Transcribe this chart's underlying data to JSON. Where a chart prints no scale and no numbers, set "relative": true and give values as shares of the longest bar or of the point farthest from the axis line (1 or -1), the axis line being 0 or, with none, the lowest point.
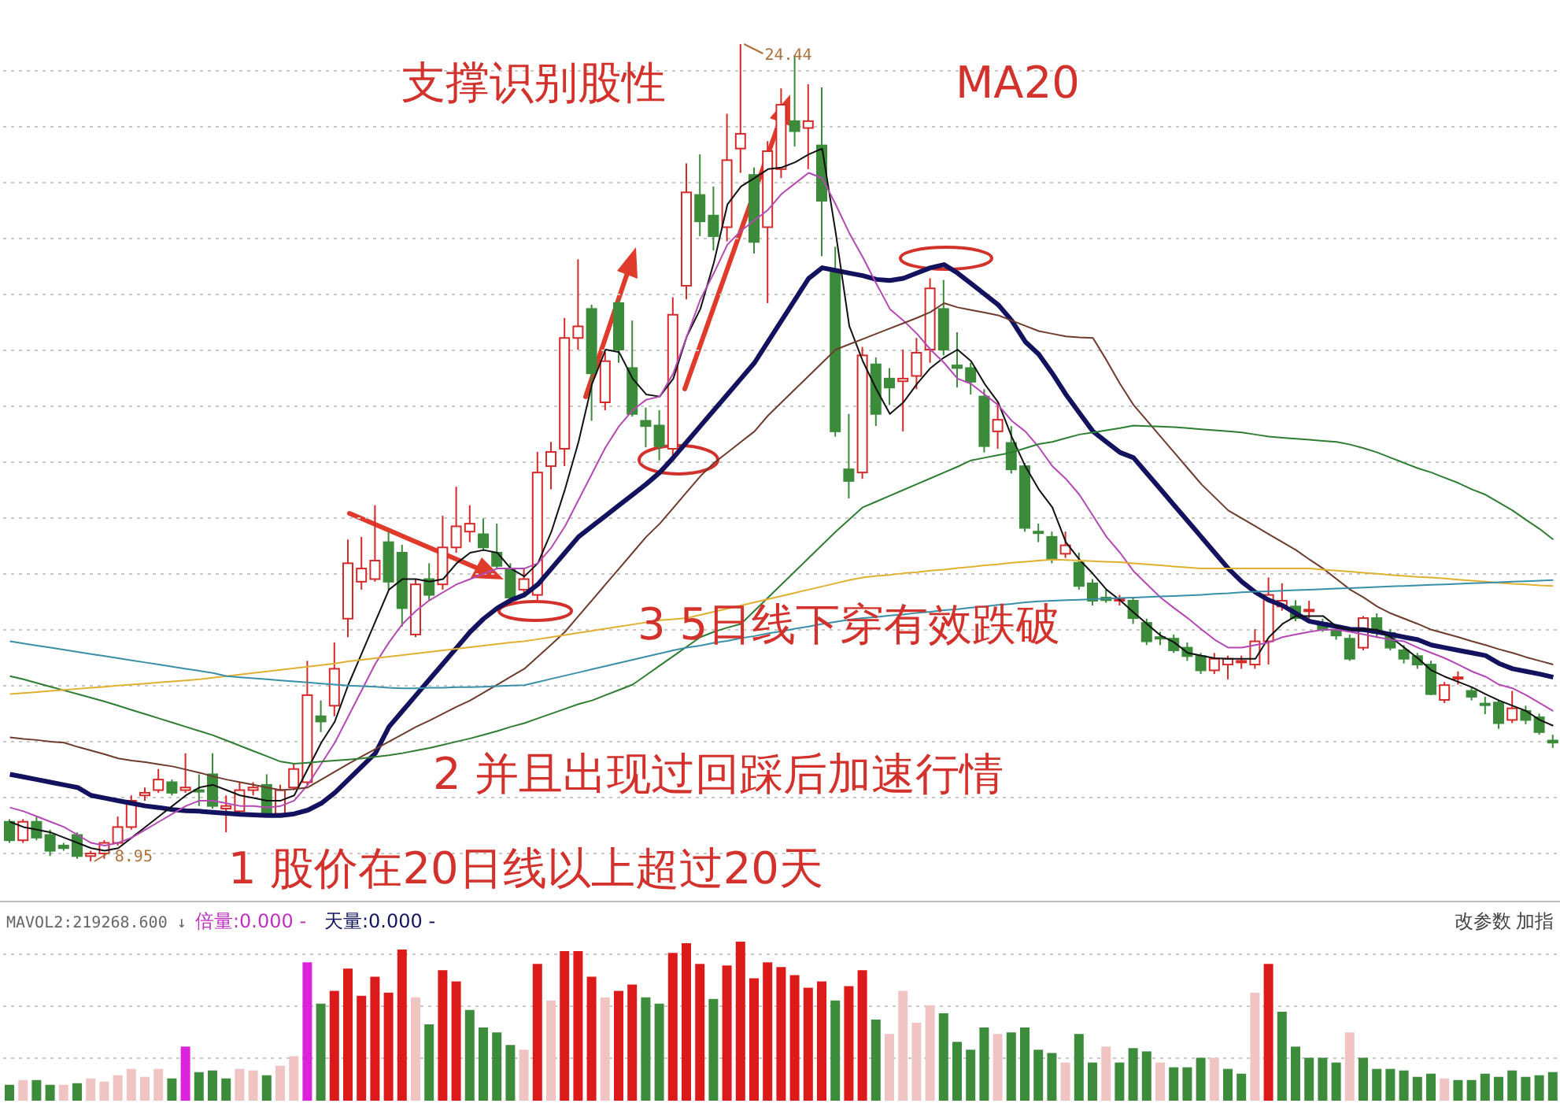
{
  "chart_data": [
    {
      "type": "candlestick",
      "grid": true,
      "annotations": [
        "支撑识别股性",
        "MA20",
        "3 5日线下穿有效跌破",
        "2 并且出现过回踩后加速行情",
        "1 股价在20日线以上超过20天",
        "24.44",
        "8.95"
      ],
      "categories": [
        null,
        null,
        null,
        null,
        null,
        null,
        null,
        null,
        null,
        null,
        null,
        null,
        null,
        null,
        null,
        null,
        null,
        null,
        null,
        null,
        null,
        null,
        null,
        null,
        null,
        null,
        null,
        null,
        null,
        null,
        null,
        null,
        null,
        null,
        null,
        null,
        null,
        null,
        null,
        null,
        null,
        null,
        null,
        null,
        null,
        null,
        null,
        null,
        null,
        null,
        null,
        null,
        null,
        null,
        null,
        null,
        null,
        null,
        null,
        null,
        null,
        null,
        null,
        null,
        null,
        null,
        null,
        null,
        null,
        null,
        null,
        null,
        null,
        null,
        null,
        null,
        null,
        null,
        null,
        null,
        null,
        null,
        null,
        null,
        null,
        null,
        null,
        null,
        null,
        null,
        null,
        null,
        null,
        null,
        null,
        null,
        null,
        null,
        null,
        null,
        null,
        null,
        null,
        null,
        null,
        null,
        null,
        null,
        null,
        null,
        null,
        null,
        null,
        null,
        null
      ],
      "ohlc": [
        [
          9.7,
          9.75,
          9.3,
          9.35
        ],
        [
          9.35,
          9.75,
          9.3,
          9.7
        ],
        [
          9.7,
          9.8,
          9.35,
          9.4
        ],
        [
          9.45,
          9.55,
          9.05,
          9.15
        ],
        [
          9.25,
          9.3,
          9.15,
          9.2
        ],
        [
          9.45,
          9.5,
          9.0,
          9.05
        ],
        [
          9.05,
          9.15,
          8.95,
          9.1
        ],
        [
          9.1,
          9.35,
          9.0,
          9.3
        ],
        [
          9.3,
          9.8,
          9.25,
          9.6
        ],
        [
          9.6,
          10.2,
          9.55,
          10.1
        ],
        [
          10.2,
          10.35,
          10.1,
          10.25
        ],
        [
          10.3,
          10.7,
          10.25,
          10.5
        ],
        [
          10.45,
          10.5,
          10.2,
          10.25
        ],
        [
          10.3,
          11.0,
          10.25,
          10.35
        ],
        [
          10.3,
          10.6,
          10.0,
          10.28
        ],
        [
          10.6,
          11.0,
          9.95,
          10.0
        ],
        [
          9.95,
          10.2,
          9.5,
          10.0
        ],
        [
          9.9,
          10.45,
          9.85,
          10.3
        ],
        [
          10.3,
          10.45,
          10.2,
          10.35
        ],
        [
          10.4,
          10.6,
          9.8,
          9.85
        ],
        [
          9.85,
          10.4,
          9.8,
          10.3
        ],
        [
          10.35,
          10.8,
          10.3,
          10.7
        ],
        [
          10.45,
          12.75,
          10.4,
          12.1
        ],
        [
          11.7,
          12.0,
          11.4,
          11.6
        ],
        [
          11.9,
          13.1,
          11.7,
          12.6
        ],
        [
          13.55,
          15.05,
          13.2,
          14.6
        ],
        [
          14.25,
          15.1,
          14.1,
          14.5
        ],
        [
          14.3,
          15.7,
          14.25,
          14.65
        ],
        [
          15.0,
          15.2,
          14.1,
          14.25
        ],
        [
          14.8,
          14.95,
          13.4,
          13.75
        ],
        [
          13.25,
          14.3,
          13.2,
          14.2
        ],
        [
          14.3,
          14.6,
          13.9,
          14.0
        ],
        [
          14.2,
          15.5,
          14.1,
          14.9
        ],
        [
          14.9,
          16.05,
          14.8,
          15.3
        ],
        [
          15.2,
          15.7,
          15.0,
          15.35
        ],
        [
          15.15,
          15.45,
          14.85,
          14.9
        ],
        [
          14.8,
          15.35,
          14.5,
          14.55
        ],
        [
          14.5,
          14.6,
          13.9,
          13.95
        ],
        [
          14.1,
          14.5,
          13.95,
          14.3
        ],
        [
          14.0,
          16.71,
          13.9,
          16.32
        ],
        [
          16.44,
          16.9,
          16.0,
          16.71
        ],
        [
          16.77,
          19.25,
          16.44,
          18.87
        ],
        [
          18.87,
          20.36,
          18.65,
          19.09
        ],
        [
          19.42,
          19.5,
          17.3,
          18.2
        ],
        [
          17.65,
          18.6,
          17.5,
          18.43
        ],
        [
          19.53,
          19.6,
          18.4,
          18.65
        ],
        [
          18.3,
          19.2,
          17.38,
          17.43
        ],
        [
          17.3,
          17.55,
          16.8,
          17.2
        ],
        [
          17.21,
          17.5,
          16.55,
          16.82
        ],
        [
          16.77,
          19.64,
          16.6,
          19.31
        ],
        [
          19.86,
          22.18,
          19.6,
          21.63
        ],
        [
          21.58,
          22.35,
          20.8,
          21.08
        ],
        [
          21.19,
          21.74,
          20.53,
          20.8
        ],
        [
          20.97,
          23.12,
          20.7,
          22.24
        ],
        [
          22.46,
          24.44,
          22.0,
          22.74
        ],
        [
          21.96,
          22.1,
          20.47,
          20.69
        ],
        [
          20.97,
          22.6,
          19.53,
          22.41
        ],
        [
          22.07,
          23.6,
          21.9,
          23.29
        ],
        [
          22.98,
          24.23,
          22.5,
          22.79
        ],
        [
          22.85,
          23.68,
          22.07,
          22.98
        ],
        [
          22.52,
          23.62,
          20.42,
          21.47
        ],
        [
          20.14,
          20.6,
          17.0,
          17.1
        ],
        [
          16.38,
          17.43,
          15.83,
          16.16
        ],
        [
          16.32,
          18.7,
          16.2,
          18.54
        ],
        [
          18.37,
          18.5,
          17.2,
          17.43
        ],
        [
          18.1,
          18.3,
          17.6,
          17.93
        ],
        [
          18.05,
          18.65,
          17.1,
          18.1
        ],
        [
          18.15,
          18.87,
          17.9,
          18.59
        ],
        [
          18.65,
          20.0,
          18.4,
          19.81
        ],
        [
          19.42,
          19.97,
          18.54,
          18.65
        ],
        [
          18.35,
          18.98,
          17.93,
          18.3
        ],
        [
          18.3,
          18.4,
          17.8,
          18.04
        ],
        [
          17.76,
          17.9,
          16.7,
          16.82
        ],
        [
          17.1,
          17.65,
          16.77,
          17.32
        ],
        [
          16.88,
          17.2,
          16.3,
          16.38
        ],
        [
          16.44,
          16.5,
          15.2,
          15.27
        ],
        [
          15.2,
          15.35,
          15.0,
          15.17
        ],
        [
          15.1,
          15.2,
          14.6,
          14.67
        ],
        [
          14.78,
          15.2,
          14.7,
          14.94
        ],
        [
          14.61,
          14.8,
          14.1,
          14.17
        ],
        [
          14.22,
          14.3,
          13.8,
          13.89
        ],
        [
          13.95,
          14.1,
          13.85,
          13.9
        ],
        [
          13.9,
          14.0,
          13.8,
          13.92
        ],
        [
          13.89,
          13.95,
          13.45,
          13.56
        ],
        [
          13.47,
          13.55,
          13.05,
          13.12
        ],
        [
          13.2,
          13.3,
          13.05,
          13.17
        ],
        [
          13.17,
          13.25,
          12.9,
          12.95
        ],
        [
          13.0,
          13.1,
          12.75,
          12.84
        ],
        [
          12.84,
          12.9,
          12.5,
          12.57
        ],
        [
          12.57,
          12.9,
          12.5,
          12.79
        ],
        [
          12.68,
          12.85,
          12.4,
          12.79
        ],
        [
          12.72,
          12.85,
          12.6,
          12.75
        ],
        [
          12.68,
          13.35,
          12.6,
          13.12
        ],
        [
          13.12,
          14.33,
          12.68,
          14.0
        ],
        [
          13.78,
          14.22,
          13.7,
          13.89
        ],
        [
          13.78,
          13.9,
          13.5,
          13.56
        ],
        [
          13.7,
          13.89,
          13.56,
          13.72
        ],
        [
          13.47,
          13.55,
          13.3,
          13.34
        ],
        [
          13.34,
          13.4,
          13.15,
          13.23
        ],
        [
          13.17,
          13.25,
          12.75,
          12.79
        ],
        [
          13.0,
          13.6,
          12.95,
          13.56
        ],
        [
          13.56,
          13.65,
          13.2,
          13.28
        ],
        [
          13.28,
          13.35,
          12.95,
          13.0
        ],
        [
          12.95,
          13.05,
          12.7,
          12.79
        ],
        [
          12.84,
          12.9,
          12.6,
          12.68
        ],
        [
          12.68,
          12.75,
          12.1,
          12.12
        ],
        [
          12.01,
          12.35,
          11.95,
          12.29
        ],
        [
          12.42,
          12.55,
          12.3,
          12.44
        ],
        [
          12.18,
          12.25,
          12.0,
          12.07
        ],
        [
          11.94,
          12.07,
          11.74,
          11.92
        ],
        [
          11.96,
          12.0,
          11.46,
          11.57
        ],
        [
          11.63,
          12.18,
          11.57,
          11.85
        ],
        [
          11.8,
          11.9,
          11.55,
          11.63
        ],
        [
          11.68,
          11.75,
          11.35,
          11.4
        ],
        [
          11.24,
          11.35,
          11.1,
          11.2
        ]
      ],
      "colors": [
        "#3b8b3b",
        "#d42a2a",
        "#3b8b3b",
        "#3b8b3b",
        "#3b8b3b",
        "#3b8b3b",
        "#d42a2a",
        "#d42a2a",
        "#d42a2a",
        "#d42a2a",
        "#d42a2a",
        "#d42a2a",
        "#3b8b3b",
        "#d42a2a",
        "#3b8b3b",
        "#3b8b3b",
        "#d42a2a",
        "#d42a2a",
        "#d42a2a",
        "#3b8b3b",
        "#d42a2a",
        "#d42a2a",
        "#d42a2a",
        "#3b8b3b",
        "#d42a2a",
        "#d42a2a",
        "#d42a2a",
        "#d42a2a",
        "#3b8b3b",
        "#3b8b3b",
        "#d42a2a",
        "#3b8b3b",
        "#d42a2a",
        "#d42a2a",
        "#d42a2a",
        "#3b8b3b",
        "#3b8b3b",
        "#3b8b3b",
        "#d42a2a",
        "#d42a2a",
        "#d42a2a",
        "#d42a2a",
        "#d42a2a",
        "#3b8b3b",
        "#d42a2a",
        "#3b8b3b",
        "#3b8b3b",
        "#3b8b3b",
        "#3b8b3b",
        "#d42a2a",
        "#d42a2a",
        "#3b8b3b",
        "#3b8b3b",
        "#d42a2a",
        "#d42a2a",
        "#3b8b3b",
        "#d42a2a",
        "#d42a2a",
        "#3b8b3b",
        "#d42a2a",
        "#3b8b3b",
        "#3b8b3b",
        "#3b8b3b",
        "#d42a2a",
        "#3b8b3b",
        "#3b8b3b",
        "#d42a2a",
        "#d42a2a",
        "#d42a2a",
        "#3b8b3b",
        "#3b8b3b",
        "#3b8b3b",
        "#3b8b3b",
        "#d42a2a",
        "#3b8b3b",
        "#3b8b3b",
        "#3b8b3b",
        "#3b8b3b",
        "#d42a2a",
        "#3b8b3b",
        "#3b8b3b",
        "#3b8b3b",
        "#d42a2a",
        "#3b8b3b",
        "#3b8b3b",
        "#3b8b3b",
        "#3b8b3b",
        "#3b8b3b",
        "#3b8b3b",
        "#d42a2a",
        "#d42a2a",
        "#d42a2a",
        "#d42a2a",
        "#d42a2a",
        "#d42a2a",
        "#3b8b3b",
        "#d42a2a",
        "#3b8b3b",
        "#3b8b3b",
        "#3b8b3b",
        "#d42a2a",
        "#3b8b3b",
        "#3b8b3b",
        "#3b8b3b",
        "#3b8b3b",
        "#3b8b3b",
        "#d42a2a",
        "#d42a2a",
        "#3b8b3b",
        "#3b8b3b",
        "#3b8b3b",
        "#d42a2a",
        "#3b8b3b",
        "#3b8b3b",
        "#3b8b3b"
      ],
      "series": [
        {
          "type": "line",
          "color": "#12125e",
          "values": [
            10.6,
            10.55,
            10.5,
            10.45,
            10.4,
            10.35,
            10.2,
            10.15,
            10.1,
            10.05,
            10.0,
            9.97,
            9.93,
            9.91,
            9.9,
            9.88,
            9.86,
            9.84,
            9.83,
            9.82,
            9.82,
            9.85,
            9.92,
            10.05,
            10.25,
            10.5,
            10.75,
            11.0,
            11.5,
            11.8,
            12.1,
            12.4,
            12.7,
            13.0,
            13.3,
            13.55,
            13.75,
            13.9,
            14.0,
            14.2,
            14.5,
            14.8,
            15.1,
            15.3,
            15.5,
            15.7,
            15.9,
            16.1,
            16.32,
            16.6,
            16.9,
            17.2,
            17.5,
            17.8,
            18.1,
            18.4,
            18.8,
            19.2,
            19.6,
            20.0,
            20.2,
            20.15,
            20.1,
            20.05,
            19.98,
            19.96,
            20.0,
            20.1,
            20.2,
            20.26,
            20.1,
            19.9,
            19.7,
            19.5,
            19.2,
            18.8,
            18.56,
            18.2,
            17.8,
            17.45,
            17.1,
            16.9,
            16.7,
            16.6,
            16.3,
            16.0,
            15.7,
            15.4,
            15.1,
            14.8,
            14.5,
            14.25,
            14.05,
            13.9,
            13.8,
            13.65,
            13.5,
            13.45,
            13.4,
            13.35,
            13.34,
            13.3,
            13.25,
            13.2,
            13.15,
            13.05,
            13.0,
            12.95,
            12.9,
            12.85,
            12.7,
            12.6,
            12.55,
            12.5,
            12.44
          ]
        },
        {
          "type": "line",
          "color": "#111111",
          "values": [
            9.7,
            9.6,
            9.55,
            9.5,
            9.4,
            9.3,
            9.2,
            9.15,
            9.2,
            9.4,
            9.6,
            9.8,
            10.0,
            10.2,
            10.35,
            10.4,
            10.3,
            10.2,
            10.15,
            10.1,
            10.1,
            10.2,
            10.7,
            11.2,
            11.6,
            12.3,
            12.9,
            13.5,
            14.1,
            14.3,
            14.3,
            14.25,
            14.3,
            14.6,
            14.8,
            14.85,
            14.8,
            14.5,
            14.35,
            14.6,
            15.2,
            16.0,
            16.9,
            18.0,
            18.65,
            18.6,
            18.1,
            17.8,
            17.76,
            18.1,
            18.9,
            19.42,
            20.3,
            21.4,
            21.74,
            21.9,
            22.07,
            22.1,
            22.2,
            22.35,
            22.46,
            20.86,
            19.1,
            18.43,
            17.9,
            17.43,
            17.65,
            18.0,
            18.3,
            18.5,
            18.65,
            18.43,
            18.0,
            17.65,
            17.0,
            16.44,
            16.0,
            15.66,
            15.0,
            14.67,
            14.4,
            14.1,
            13.9,
            13.67,
            13.45,
            13.23,
            13.1,
            12.9,
            12.85,
            12.8,
            12.79,
            12.79,
            12.79,
            13.2,
            13.45,
            13.6,
            13.6,
            13.6,
            13.4,
            13.34,
            13.34,
            13.34,
            13.2,
            13.0,
            12.8,
            12.57,
            12.45,
            12.35,
            12.25,
            12.12,
            12.0,
            11.9,
            11.8,
            11.63,
            11.52
          ]
        },
        {
          "type": "line",
          "color": "#b449b4",
          "values": [
            9.97,
            9.9,
            9.8,
            9.7,
            9.6,
            9.45,
            9.3,
            9.25,
            9.3,
            9.4,
            9.55,
            9.7,
            9.85,
            10.0,
            10.1,
            10.1,
            10.05,
            10.0,
            10.0,
            9.97,
            10.0,
            10.1,
            10.4,
            10.8,
            11.2,
            11.7,
            12.2,
            12.7,
            13.1,
            13.45,
            13.7,
            13.9,
            14.05,
            14.2,
            14.3,
            14.4,
            14.5,
            14.5,
            14.5,
            14.6,
            14.9,
            15.3,
            15.8,
            16.3,
            16.8,
            17.2,
            17.5,
            17.7,
            17.76,
            18.2,
            18.9,
            19.6,
            20.1,
            20.64,
            20.9,
            21.1,
            21.3,
            21.6,
            21.8,
            22.0,
            21.9,
            21.4,
            20.86,
            20.4,
            19.9,
            19.42,
            19.2,
            18.95,
            18.65,
            18.4,
            18.1,
            18.0,
            17.8,
            17.6,
            17.3,
            17.1,
            16.8,
            16.44,
            16.2,
            15.9,
            15.5,
            15.1,
            14.8,
            14.45,
            14.2,
            13.95,
            13.75,
            13.56,
            13.35,
            13.15,
            13.0,
            13.0,
            13.05,
            13.1,
            13.2,
            13.25,
            13.3,
            13.34,
            13.34,
            13.3,
            13.25,
            13.2,
            13.15,
            13.12,
            13.0,
            12.9,
            12.8,
            12.68,
            12.55,
            12.45,
            12.3,
            12.23,
            12.1,
            11.95,
            11.8
          ]
        },
        {
          "type": "line",
          "color": "#6e3b2c",
          "values": [
            11.3,
            11.27,
            11.25,
            11.22,
            11.2,
            11.12,
            11.05,
            10.98,
            10.9,
            10.86,
            10.83,
            10.79,
            10.75,
            10.69,
            10.63,
            10.56,
            10.5,
            10.45,
            10.4,
            10.35,
            10.3,
            10.32,
            10.35,
            10.5,
            10.65,
            10.8,
            10.94,
            11.08,
            11.22,
            11.36,
            11.5,
            11.62,
            11.75,
            11.88,
            12.0,
            12.15,
            12.3,
            12.45,
            12.6,
            12.83,
            13.06,
            13.3,
            13.6,
            13.9,
            14.2,
            14.5,
            14.8,
            15.1,
            15.35,
            15.65,
            15.95,
            16.25,
            16.5,
            16.7,
            16.9,
            17.1,
            17.4,
            17.65,
            17.9,
            18.15,
            18.4,
            18.65,
            18.75,
            18.85,
            18.95,
            19.05,
            19.15,
            19.25,
            19.36,
            19.53,
            19.45,
            19.4,
            19.35,
            19.3,
            19.2,
            19.1,
            19.0,
            18.95,
            18.9,
            18.88,
            18.87,
            18.45,
            18.0,
            17.6,
            17.3,
            17.0,
            16.7,
            16.4,
            16.1,
            15.85,
            15.6,
            15.45,
            15.3,
            15.15,
            15.0,
            14.85,
            14.67,
            14.5,
            14.3,
            14.1,
            13.95,
            13.78,
            13.65,
            13.55,
            13.45,
            13.34,
            13.27,
            13.2,
            13.12,
            13.05,
            12.97,
            12.9,
            12.82,
            12.75,
            12.68
          ]
        },
        {
          "type": "line",
          "color": "#2f7d32",
          "values": [
            12.46,
            12.4,
            12.33,
            12.26,
            12.19,
            12.12,
            12.05,
            11.98,
            11.9,
            11.82,
            11.74,
            11.66,
            11.58,
            11.5,
            11.42,
            11.34,
            11.24,
            11.14,
            11.04,
            10.94,
            10.84,
            10.8,
            10.82,
            10.84,
            10.86,
            10.88,
            10.9,
            10.93,
            10.96,
            11.0,
            11.05,
            11.1,
            11.16,
            11.22,
            11.28,
            11.35,
            11.42,
            11.5,
            11.57,
            11.66,
            11.75,
            11.84,
            11.93,
            12.0,
            12.1,
            12.2,
            12.3,
            12.48,
            12.66,
            12.84,
            13.02,
            13.2,
            13.3,
            13.38,
            13.45,
            13.7,
            13.95,
            14.2,
            14.45,
            14.7,
            14.95,
            15.2,
            15.43,
            15.66,
            15.77,
            15.88,
            15.99,
            16.1,
            16.21,
            16.32,
            16.43,
            16.55,
            16.6,
            16.65,
            16.7,
            16.78,
            16.86,
            16.9,
            16.97,
            17.04,
            17.08,
            17.12,
            17.16,
            17.21,
            17.2,
            17.19,
            17.18,
            17.16,
            17.14,
            17.12,
            17.1,
            17.08,
            17.04,
            17.0,
            16.98,
            16.96,
            16.94,
            16.92,
            16.9,
            16.85,
            16.78,
            16.7,
            16.6,
            16.5,
            16.4,
            16.32,
            16.22,
            16.12,
            16.0,
            15.9,
            15.75,
            15.6,
            15.42,
            15.25,
            15.05
          ]
        },
        {
          "type": "line",
          "color": "#e0b030",
          "values": [
            12.12,
            12.14,
            12.16,
            12.18,
            12.2,
            12.22,
            12.24,
            12.26,
            12.28,
            12.3,
            12.32,
            12.34,
            12.36,
            12.38,
            12.4,
            12.43,
            12.46,
            12.49,
            12.52,
            12.55,
            12.58,
            12.61,
            12.64,
            12.67,
            12.7,
            12.74,
            12.77,
            12.8,
            12.83,
            12.86,
            12.89,
            12.92,
            12.95,
            12.98,
            13.01,
            13.04,
            13.07,
            13.1,
            13.12,
            13.16,
            13.2,
            13.24,
            13.28,
            13.32,
            13.36,
            13.4,
            13.44,
            13.48,
            13.52,
            13.54,
            13.56,
            13.62,
            13.68,
            13.74,
            13.8,
            13.86,
            13.92,
            13.98,
            14.04,
            14.1,
            14.16,
            14.22,
            14.28,
            14.33,
            14.36,
            14.38,
            14.41,
            14.43,
            14.46,
            14.48,
            14.51,
            14.53,
            14.56,
            14.58,
            14.61,
            14.63,
            14.65,
            14.67,
            14.66,
            14.65,
            14.64,
            14.63,
            14.62,
            14.6,
            14.58,
            14.56,
            14.54,
            14.52,
            14.5,
            14.5,
            14.5,
            14.5,
            14.5,
            14.5,
            14.5,
            14.5,
            14.5,
            14.48,
            14.46,
            14.44,
            14.42,
            14.4,
            14.38,
            14.36,
            14.34,
            14.33,
            14.31,
            14.29,
            14.27,
            14.25,
            14.23,
            14.21,
            14.2,
            14.18,
            14.17
          ]
        },
        {
          "type": "line",
          "color": "#3a8fa8",
          "values": [
            13.12,
            13.08,
            13.04,
            13.0,
            12.96,
            12.92,
            12.88,
            12.84,
            12.8,
            12.76,
            12.72,
            12.68,
            12.64,
            12.6,
            12.56,
            12.52,
            12.46,
            12.44,
            12.42,
            12.4,
            12.38,
            12.36,
            12.34,
            12.32,
            12.3,
            12.28,
            12.27,
            12.26,
            12.24,
            12.23,
            12.23,
            12.24,
            12.24,
            12.25,
            12.25,
            12.26,
            12.27,
            12.28,
            12.29,
            12.35,
            12.41,
            12.47,
            12.53,
            12.59,
            12.65,
            12.71,
            12.77,
            12.83,
            12.89,
            12.95,
            13.0,
            13.04,
            13.09,
            13.13,
            13.18,
            13.22,
            13.27,
            13.31,
            13.36,
            13.4,
            13.45,
            13.49,
            13.53,
            13.56,
            13.58,
            13.61,
            13.63,
            13.66,
            13.68,
            13.71,
            13.73,
            13.76,
            13.78,
            13.81,
            13.83,
            13.86,
            13.88,
            13.89,
            13.9,
            13.91,
            13.92,
            13.93,
            13.94,
            13.95,
            13.96,
            13.97,
            13.98,
            13.99,
            14.0,
            14.02,
            14.03,
            14.05,
            14.06,
            14.07,
            14.08,
            14.09,
            14.1,
            14.11,
            14.12,
            14.13,
            14.14,
            14.15,
            14.16,
            14.17,
            14.18,
            14.19,
            14.2,
            14.21,
            14.22,
            14.23,
            14.24,
            14.25,
            14.26,
            14.27,
            14.28
          ]
        }
      ]
    },
    {
      "type": "bar",
      "relative": true,
      "grid": true,
      "annotations": [
        "MAVOL2:219268.600 ↓",
        "倍量:0.000 -",
        "天量:0.000 -",
        "改参数",
        "加指"
      ],
      "categories": [
        null,
        null,
        null,
        null,
        null,
        null,
        null,
        null,
        null,
        null,
        null,
        null,
        null,
        null,
        null,
        null,
        null,
        null,
        null,
        null,
        null,
        null,
        null,
        null,
        null,
        null,
        null,
        null,
        null,
        null,
        null,
        null,
        null,
        null,
        null,
        null,
        null,
        null,
        null,
        null,
        null,
        null,
        null,
        null,
        null,
        null,
        null,
        null,
        null,
        null,
        null,
        null,
        null,
        null,
        null,
        null,
        null,
        null,
        null,
        null,
        null,
        null,
        null,
        null,
        null,
        null,
        null,
        null,
        null,
        null,
        null,
        null,
        null,
        null,
        null,
        null,
        null,
        null,
        null,
        null,
        null,
        null,
        null,
        null,
        null,
        null,
        null,
        null,
        null,
        null,
        null,
        null,
        null,
        null,
        null,
        null,
        null,
        null,
        null,
        null,
        null,
        null,
        null,
        null,
        null,
        null,
        null,
        null,
        null,
        null,
        null,
        null,
        null,
        null,
        null
      ],
      "values": [
        0.1,
        0.13,
        0.13,
        0.1,
        0.1,
        0.11,
        0.14,
        0.12,
        0.16,
        0.2,
        0.15,
        0.2,
        0.14,
        0.34,
        0.18,
        0.19,
        0.14,
        0.2,
        0.19,
        0.16,
        0.22,
        0.28,
        0.87,
        0.61,
        0.69,
        0.83,
        0.66,
        0.78,
        0.68,
        0.95,
        0.65,
        0.48,
        0.82,
        0.75,
        0.57,
        0.46,
        0.43,
        0.35,
        0.32,
        0.86,
        0.63,
        0.94,
        0.94,
        0.78,
        0.65,
        0.69,
        0.73,
        0.65,
        0.61,
        0.93,
        0.99,
        0.86,
        0.64,
        0.85,
        1.0,
        0.77,
        0.87,
        0.84,
        0.79,
        0.71,
        0.75,
        0.63,
        0.72,
        0.82,
        0.51,
        0.42,
        0.69,
        0.49,
        0.6,
        0.55,
        0.37,
        0.32,
        0.46,
        0.42,
        0.43,
        0.46,
        0.32,
        0.3,
        0.24,
        0.42,
        0.24,
        0.34,
        0.24,
        0.33,
        0.31,
        0.24,
        0.21,
        0.21,
        0.27,
        0.27,
        0.2,
        0.17,
        0.68,
        0.86,
        0.56,
        0.34,
        0.27,
        0.27,
        0.24,
        0.43,
        0.27,
        0.2,
        0.2,
        0.19,
        0.15,
        0.17,
        0.14,
        0.13,
        0.13,
        0.17,
        0.15,
        0.19,
        0.15,
        0.16,
        0.18
      ],
      "colors": [
        "#3c8c3c",
        "#f1c4c4",
        "#3c8c3c",
        "#3c8c3c",
        "#f1c4c4",
        "#3c8c3c",
        "#f1c4c4",
        "#f1c4c4",
        "#f1c4c4",
        "#f1c4c4",
        "#f1c4c4",
        "#f1c4c4",
        "#3c8c3c",
        "#dd22dd",
        "#3c8c3c",
        "#3c8c3c",
        "#3c8c3c",
        "#f1c4c4",
        "#f1c4c4",
        "#3c8c3c",
        "#f1c4c4",
        "#f1c4c4",
        "#dd22dd",
        "#3c8c3c",
        "#dd1a1a",
        "#dd1a1a",
        "#dd1a1a",
        "#dd1a1a",
        "#dd1a1a",
        "#dd1a1a",
        "#f1c4c4",
        "#3c8c3c",
        "#dd1a1a",
        "#dd1a1a",
        "#3c8c3c",
        "#3c8c3c",
        "#3c8c3c",
        "#3c8c3c",
        "#f1c4c4",
        "#dd1a1a",
        "#f1c4c4",
        "#dd1a1a",
        "#dd1a1a",
        "#dd1a1a",
        "#f1c4c4",
        "#dd1a1a",
        "#dd1a1a",
        "#3c8c3c",
        "#3c8c3c",
        "#dd1a1a",
        "#dd1a1a",
        "#dd1a1a",
        "#3c8c3c",
        "#dd1a1a",
        "#dd1a1a",
        "#dd1a1a",
        "#dd1a1a",
        "#dd1a1a",
        "#dd1a1a",
        "#dd1a1a",
        "#dd1a1a",
        "#3c8c3c",
        "#dd1a1a",
        "#dd1a1a",
        "#3c8c3c",
        "#f1c4c4",
        "#f1c4c4",
        "#f1c4c4",
        "#f1c4c4",
        "#3c8c3c",
        "#3c8c3c",
        "#3c8c3c",
        "#3c8c3c",
        "#f1c4c4",
        "#3c8c3c",
        "#3c8c3c",
        "#3c8c3c",
        "#3c8c3c",
        "#f1c4c4",
        "#3c8c3c",
        "#3c8c3c",
        "#f1c4c4",
        "#3c8c3c",
        "#3c8c3c",
        "#3c8c3c",
        "#f1c4c4",
        "#3c8c3c",
        "#3c8c3c",
        "#3c8c3c",
        "#f1c4c4",
        "#3c8c3c",
        "#3c8c3c",
        "#f1c4c4",
        "#dd1a1a",
        "#3c8c3c",
        "#3c8c3c",
        "#3c8c3c",
        "#3c8c3c",
        "#3c8c3c",
        "#f1c4c4",
        "#3c8c3c",
        "#3c8c3c",
        "#3c8c3c",
        "#3c8c3c",
        "#3c8c3c",
        "#3c8c3c",
        "#f1c4c4",
        "#3c8c3c",
        "#3c8c3c",
        "#3c8c3c",
        "#3c8c3c",
        "#3c8c3c",
        "#3c8c3c",
        "#3c8c3c",
        "#3c8c3c"
      ]
    }
  ]
}
